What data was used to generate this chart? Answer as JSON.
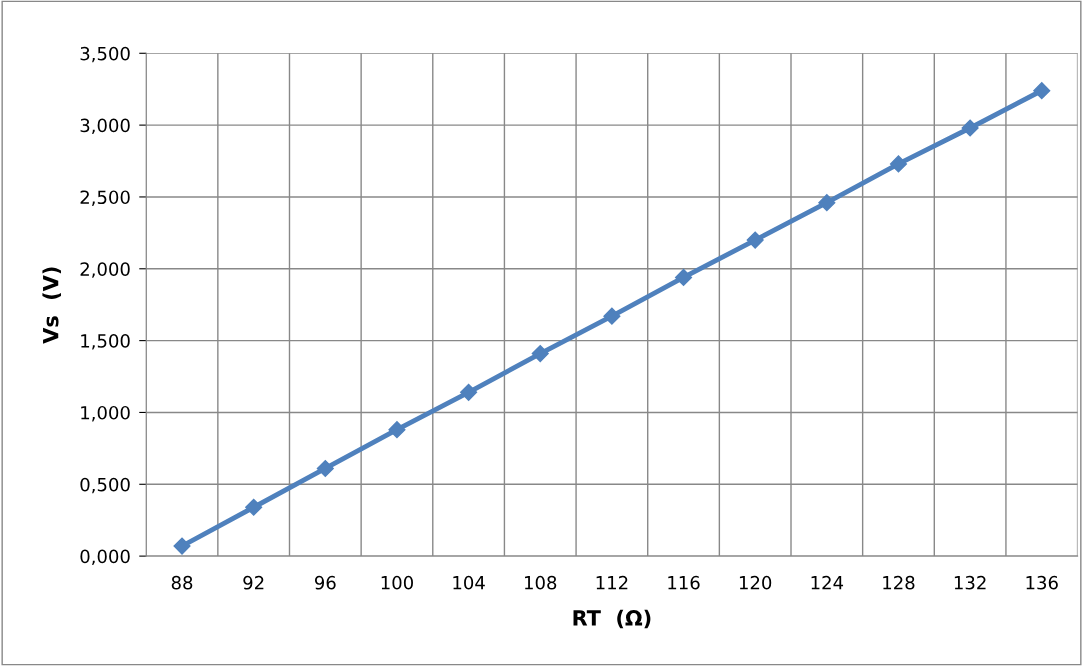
{
  "chart_data": {
    "type": "line",
    "xlabel": "RT  (Ω)",
    "ylabel": "Vs  (V)",
    "categories": [
      "88",
      "92",
      "96",
      "100",
      "104",
      "108",
      "112",
      "116",
      "120",
      "124",
      "128",
      "132",
      "136"
    ],
    "series": [
      {
        "color": "#4f81bd",
        "values": [
          0.07,
          0.34,
          0.61,
          0.88,
          1.14,
          1.41,
          1.67,
          1.94,
          2.2,
          2.46,
          2.73,
          2.98,
          3.24
        ]
      }
    ],
    "ylim": [
      0,
      3.5
    ],
    "yticks": [
      {
        "value": 0,
        "label": "0,000"
      },
      {
        "value": 0.5,
        "label": "0,500"
      },
      {
        "value": 1,
        "label": "1,000"
      },
      {
        "value": 1.5,
        "label": "1,500"
      },
      {
        "value": 2,
        "label": "2,000"
      },
      {
        "value": 2.5,
        "label": "2,500"
      },
      {
        "value": 3,
        "label": "3,000"
      },
      {
        "value": 3.5,
        "label": "3,500"
      }
    ],
    "grid": true,
    "marker": "diamond",
    "line_style": "solid",
    "legend": false
  }
}
